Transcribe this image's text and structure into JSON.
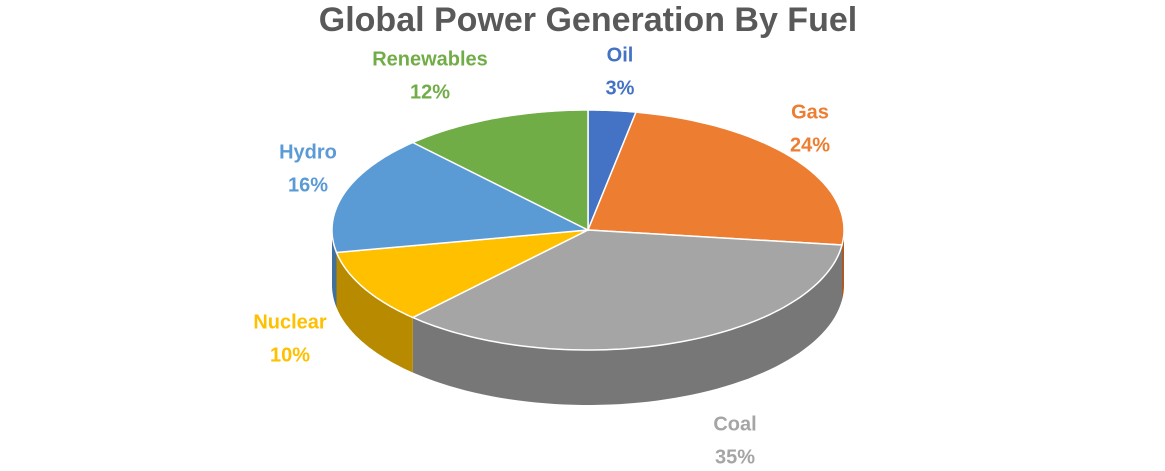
{
  "chart_data": {
    "type": "pie",
    "title": "Global Power Generation By Fuel",
    "categories": [
      "Oil",
      "Gas",
      "Coal",
      "Nuclear",
      "Hydro",
      "Renewables"
    ],
    "values": [
      3,
      24,
      35,
      10,
      16,
      12
    ],
    "value_labels": [
      "3%",
      "24%",
      "35%",
      "10%",
      "16%",
      "12%"
    ],
    "colors": [
      "#4472c4",
      "#ed7d31",
      "#a5a5a5",
      "#ffc000",
      "#5b9bd5",
      "#70ad47"
    ]
  }
}
